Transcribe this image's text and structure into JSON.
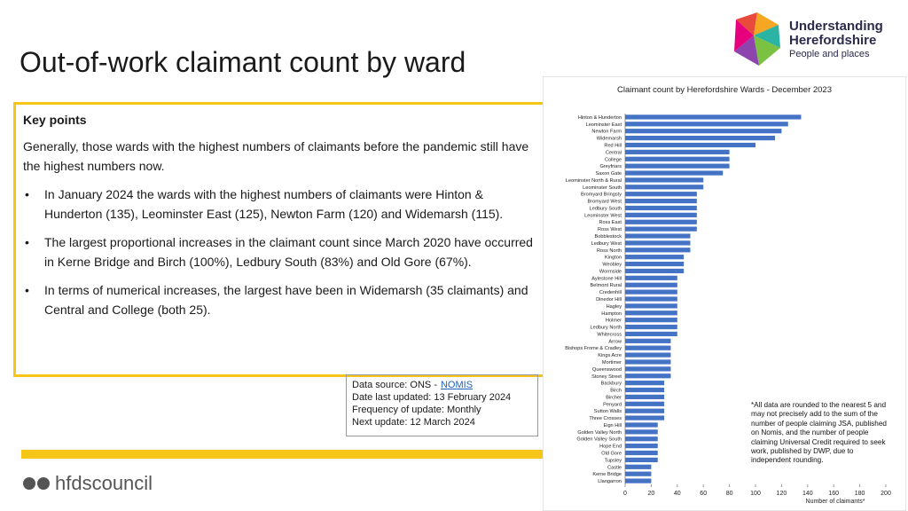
{
  "slide": {
    "title": "Out-of-work claimant count by ward",
    "key_points": {
      "heading": "Key points",
      "intro": "Generally, those wards with the highest numbers of claimants before the pandemic still have the highest numbers now.",
      "bullets": [
        "In January 2024 the wards with the highest numbers of claimants were Hinton & Hunderton (135), Leominster East (125), Newton Farm (120) and Widemarsh (115).",
        "The largest proportional increases in the claimant count since March 2020 have occurred in Kerne Bridge and Birch (100%), Ledbury South (83%) and Old Gore (67%).",
        "In terms of numerical increases, the largest have been in Widemarsh (35 claimants) and Central and College (both 25)."
      ]
    },
    "data_source": {
      "label": "Data source: ONS -",
      "link": "NOMIS",
      "lines": [
        "Date last updated: 13 February 2024",
        "Frequency of update: Monthly",
        "Next update: 12 March 2024"
      ]
    },
    "logo": {
      "name_1": "Understanding",
      "name_2": "Herefordshire",
      "tagline": "People and places"
    },
    "footer": "hfdscouncil"
  },
  "chart_data": {
    "type": "bar",
    "orientation": "horizontal",
    "title": "Claimant count by Herefordshire Wards - December 2023",
    "categories": [
      "Hinton & Hunderton",
      "Leominster East",
      "Newton Farm",
      "Widemarsh",
      "Red Hill",
      "Central",
      "College",
      "Greyfriars",
      "Saxon Gate",
      "Leominster North & Rural",
      "Leominster South",
      "Bromyard Bringsty",
      "Bromyard West",
      "Ledbury South",
      "Leominster West",
      "Ross East",
      "Ross West",
      "Bobblestock",
      "Ledbury West",
      "Ross North",
      "Kington",
      "Weobley",
      "Wormside",
      "Aylestone Hill",
      "Belmont Rural",
      "Credenhill",
      "Dinedor Hill",
      "Hagley",
      "Hampton",
      "Holmer",
      "Ledbury North",
      "Whitecross",
      "Arrow",
      "Bishops Frome & Cradley",
      "Kings Acre",
      "Mortimer",
      "Queenswood",
      "Stoney Street",
      "Backbury",
      "Birch",
      "Bircher",
      "Penyard",
      "Sutton Walls",
      "Three Crosses",
      "Eign Hill",
      "Golden Valley North",
      "Golden Valley South",
      "Hope End",
      "Old Gore",
      "Tupsley",
      "Castle",
      "Kerne Bridge",
      "Llangarron"
    ],
    "values": [
      135,
      125,
      120,
      115,
      100,
      80,
      80,
      80,
      75,
      60,
      60,
      55,
      55,
      55,
      55,
      55,
      55,
      50,
      50,
      50,
      45,
      45,
      45,
      40,
      40,
      40,
      40,
      40,
      40,
      40,
      40,
      40,
      35,
      35,
      35,
      35,
      35,
      35,
      30,
      30,
      30,
      30,
      30,
      30,
      25,
      25,
      25,
      25,
      25,
      25,
      20,
      20,
      20
    ],
    "color": "#4472c4",
    "xlim": [
      0,
      200
    ],
    "xticks": [
      0,
      20,
      40,
      60,
      80,
      100,
      120,
      140,
      160,
      180,
      200
    ],
    "xlabel": "Number of claimants*",
    "note": "*All data are rounded to the nearest 5 and may not precisely add to the sum of the number of people claiming JSA, published on Nomis, and the number of people claiming Universal Credit required to seek work, published by DWP, due to independent rounding."
  }
}
